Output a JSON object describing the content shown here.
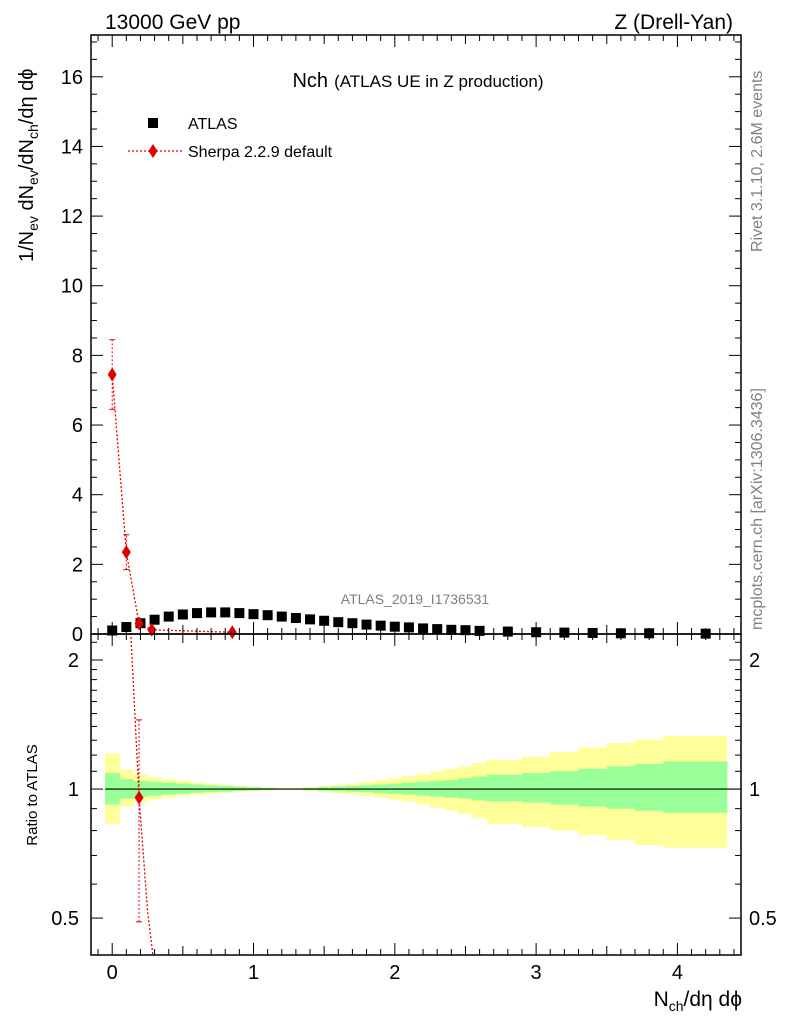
{
  "header": {
    "left": "13000 GeV pp",
    "right": "Z (Drell-Yan)"
  },
  "side": {
    "rivet": "Rivet 3.1.10,  2.6M events",
    "mcplots": "mcplots.cern.ch [arXiv:1306.3436]"
  },
  "colors": {
    "data": "#000000",
    "mc": "#e00000",
    "band_inner": "#99ff99",
    "band_outer": "#ffff99"
  },
  "chart_data": [
    {
      "type": "scatter",
      "title_main": "Nch",
      "title_sub": "(ATLAS UE in Z production)",
      "watermark": "ATLAS_2019_I1736531",
      "ylabel": {
        "a": "1/N",
        "s1": "ev",
        "b": " dN",
        "s2": "ev",
        "c": "/dN",
        "s3": "ch",
        "d": "/dη dϕ"
      },
      "xlabel": {
        "a": "N",
        "s1": "ch",
        "b": "/dη dϕ"
      },
      "xlim": [
        -0.15,
        4.45
      ],
      "ylim": [
        0,
        17.2
      ],
      "xticks": [
        0,
        1,
        2,
        3,
        4
      ],
      "xtick_labels": [
        "0",
        "1",
        "2",
        "3",
        "4"
      ],
      "yticks": [
        0,
        2,
        4,
        6,
        8,
        10,
        12,
        14,
        16
      ],
      "ytick_labels": [
        "0",
        "2",
        "4",
        "6",
        "8",
        "10",
        "12",
        "14",
        "16"
      ],
      "legend": [
        "ATLAS",
        "Sherpa 2.2.9 default"
      ],
      "series": [
        {
          "name": "ATLAS",
          "x": [
            0.0,
            0.1,
            0.2,
            0.3,
            0.4,
            0.5,
            0.6,
            0.7,
            0.8,
            0.9,
            1.0,
            1.1,
            1.2,
            1.3,
            1.4,
            1.5,
            1.6,
            1.7,
            1.8,
            1.9,
            2.0,
            2.1,
            2.2,
            2.3,
            2.4,
            2.5,
            2.6,
            2.8,
            3.0,
            3.2,
            3.4,
            3.6,
            3.8,
            4.2
          ],
          "y": [
            0.1,
            0.2,
            0.31,
            0.41,
            0.5,
            0.56,
            0.6,
            0.62,
            0.62,
            0.6,
            0.57,
            0.54,
            0.5,
            0.46,
            0.42,
            0.38,
            0.34,
            0.31,
            0.27,
            0.24,
            0.21,
            0.19,
            0.16,
            0.14,
            0.12,
            0.11,
            0.09,
            0.07,
            0.05,
            0.04,
            0.03,
            0.02,
            0.02,
            0.01
          ]
        },
        {
          "name": "Sherpa 2.2.9 default",
          "x": [
            0.0,
            0.1,
            0.19,
            0.28,
            0.85
          ],
          "y": [
            7.45,
            2.35,
            0.3,
            0.12,
            0.05
          ],
          "yerr": [
            1.0,
            0.5,
            0.1,
            0.05,
            0.03
          ]
        }
      ]
    },
    {
      "type": "line",
      "ylabel": "Ratio to ATLAS",
      "ylim": [
        0.41,
        2.3
      ],
      "yscale": "log",
      "yticks": [
        0.5,
        1,
        2
      ],
      "ytick_labels": [
        "0.5",
        "1",
        "2"
      ],
      "reference": 1,
      "bands": {
        "x_edges": [
          -0.05,
          0.05,
          0.15,
          0.25,
          0.35,
          0.45,
          0.55,
          0.65,
          0.75,
          0.85,
          0.95,
          1.05,
          1.15,
          1.25,
          1.35,
          1.45,
          1.55,
          1.65,
          1.75,
          1.85,
          1.95,
          2.05,
          2.15,
          2.25,
          2.35,
          2.45,
          2.55,
          2.65,
          2.9,
          3.1,
          3.3,
          3.5,
          3.7,
          3.9,
          4.35
        ],
        "inner_lo": [
          0.92,
          0.95,
          0.96,
          0.965,
          0.97,
          0.975,
          0.98,
          0.983,
          0.986,
          0.99,
          0.993,
          0.995,
          0.997,
          0.997,
          0.994,
          0.991,
          0.988,
          0.985,
          0.982,
          0.978,
          0.974,
          0.97,
          0.965,
          0.96,
          0.955,
          0.95,
          0.94,
          0.935,
          0.93,
          0.92,
          0.91,
          0.9,
          0.89,
          0.88
        ],
        "inner_hi": [
          1.09,
          1.055,
          1.045,
          1.04,
          1.035,
          1.03,
          1.025,
          1.02,
          1.017,
          1.013,
          1.01,
          1.007,
          1.004,
          1.004,
          1.007,
          1.011,
          1.014,
          1.017,
          1.021,
          1.025,
          1.03,
          1.035,
          1.04,
          1.045,
          1.05,
          1.06,
          1.07,
          1.08,
          1.09,
          1.1,
          1.115,
          1.13,
          1.145,
          1.16
        ],
        "outer_lo": [
          0.83,
          0.91,
          0.935,
          0.945,
          0.955,
          0.963,
          0.97,
          0.975,
          0.98,
          0.985,
          0.99,
          0.993,
          0.996,
          0.996,
          0.99,
          0.985,
          0.978,
          0.972,
          0.965,
          0.955,
          0.945,
          0.935,
          0.92,
          0.905,
          0.89,
          0.875,
          0.855,
          0.83,
          0.815,
          0.8,
          0.78,
          0.76,
          0.74,
          0.73
        ],
        "outer_hi": [
          1.21,
          1.11,
          1.08,
          1.065,
          1.055,
          1.045,
          1.035,
          1.028,
          1.022,
          1.017,
          1.012,
          1.008,
          1.005,
          1.005,
          1.01,
          1.016,
          1.022,
          1.03,
          1.038,
          1.048,
          1.06,
          1.072,
          1.085,
          1.1,
          1.115,
          1.13,
          1.15,
          1.17,
          1.19,
          1.22,
          1.25,
          1.28,
          1.305,
          1.33
        ]
      },
      "mc_line_x": [
        0.19,
        0.25,
        0.3
      ],
      "mc_line_y": [
        0.96,
        0.52,
        0.38
      ],
      "mc_point": {
        "x": 0.19,
        "y": 0.955,
        "yerr_lo": 0.49,
        "yerr_hi": 1.45
      }
    }
  ]
}
